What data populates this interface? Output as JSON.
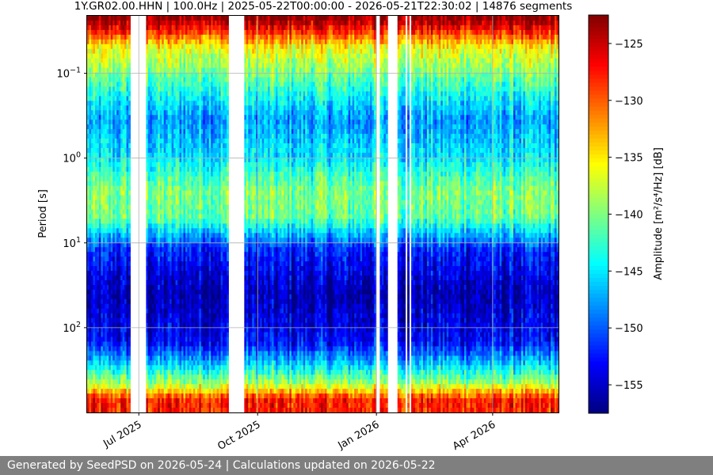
{
  "chart_data": {
    "type": "heatmap",
    "title": "1Y.GR02.00.HHN | 100.0Hz | 2025-05-22T00:00:00 - 2026-05-21T22:30:02 | 14876 segments",
    "ylabel": "Period [s]",
    "y_scale": "log",
    "y_direction": "inverted",
    "xlim": [
      "2025-05-22",
      "2026-05-22"
    ],
    "x_ticks": [
      {
        "date": "2025-07-01",
        "label": "Jul 2025"
      },
      {
        "date": "2025-10-01",
        "label": "Oct 2025"
      },
      {
        "date": "2026-01-01",
        "label": "Jan 2026"
      },
      {
        "date": "2026-04-01",
        "label": "Apr 2026"
      }
    ],
    "y_ticks": [
      {
        "value": 0.1,
        "base": "10",
        "exp": "−1"
      },
      {
        "value": 1,
        "base": "10",
        "exp": "0"
      },
      {
        "value": 10,
        "base": "10",
        "exp": "1"
      },
      {
        "value": 100,
        "base": "10",
        "exp": "2"
      }
    ],
    "grid": true,
    "colormap": "jet",
    "colorbar": {
      "label": "Amplitude [m²/s⁴/Hz] [dB]",
      "range": [
        -157.5,
        -122.5
      ],
      "ticks": [
        -125,
        -130,
        -135,
        -140,
        -145,
        -150,
        -155
      ],
      "tick_labels": [
        "−125",
        "−130",
        "−135",
        "−140",
        "−145",
        "−150",
        "−155"
      ]
    },
    "data_gaps": [
      {
        "start": "2025-06-25",
        "end": "2025-07-06"
      },
      {
        "start": "2025-09-08",
        "end": "2025-09-20"
      },
      {
        "start": "2026-01-01",
        "end": "2026-01-03"
      },
      {
        "start": "2026-01-09",
        "end": "2026-01-17"
      },
      {
        "start": "2026-01-20",
        "end": "2026-01-21"
      },
      {
        "start": "2026-01-24",
        "end": "2026-01-25"
      },
      {
        "start": "2026-01-27",
        "end": "2026-01-28"
      }
    ],
    "profile": [
      {
        "period": 0.022,
        "db": -123
      },
      {
        "period": 0.03,
        "db": -127
      },
      {
        "period": 0.05,
        "db": -136
      },
      {
        "period": 0.08,
        "db": -139
      },
      {
        "period": 0.15,
        "db": -143
      },
      {
        "period": 0.35,
        "db": -148
      },
      {
        "period": 1.0,
        "db": -145
      },
      {
        "period": 2.5,
        "db": -140
      },
      {
        "period": 5,
        "db": -141
      },
      {
        "period": 8,
        "db": -147
      },
      {
        "period": 12,
        "db": -152
      },
      {
        "period": 40,
        "db": -156
      },
      {
        "period": 150,
        "db": -153
      },
      {
        "period": 250,
        "db": -147
      },
      {
        "period": 450,
        "db": -139
      },
      {
        "period": 700,
        "db": -128
      }
    ]
  },
  "footer": {
    "text": "Generated by SeedPSD on 2026-05-24 | Calculations updated on 2026-05-22"
  }
}
